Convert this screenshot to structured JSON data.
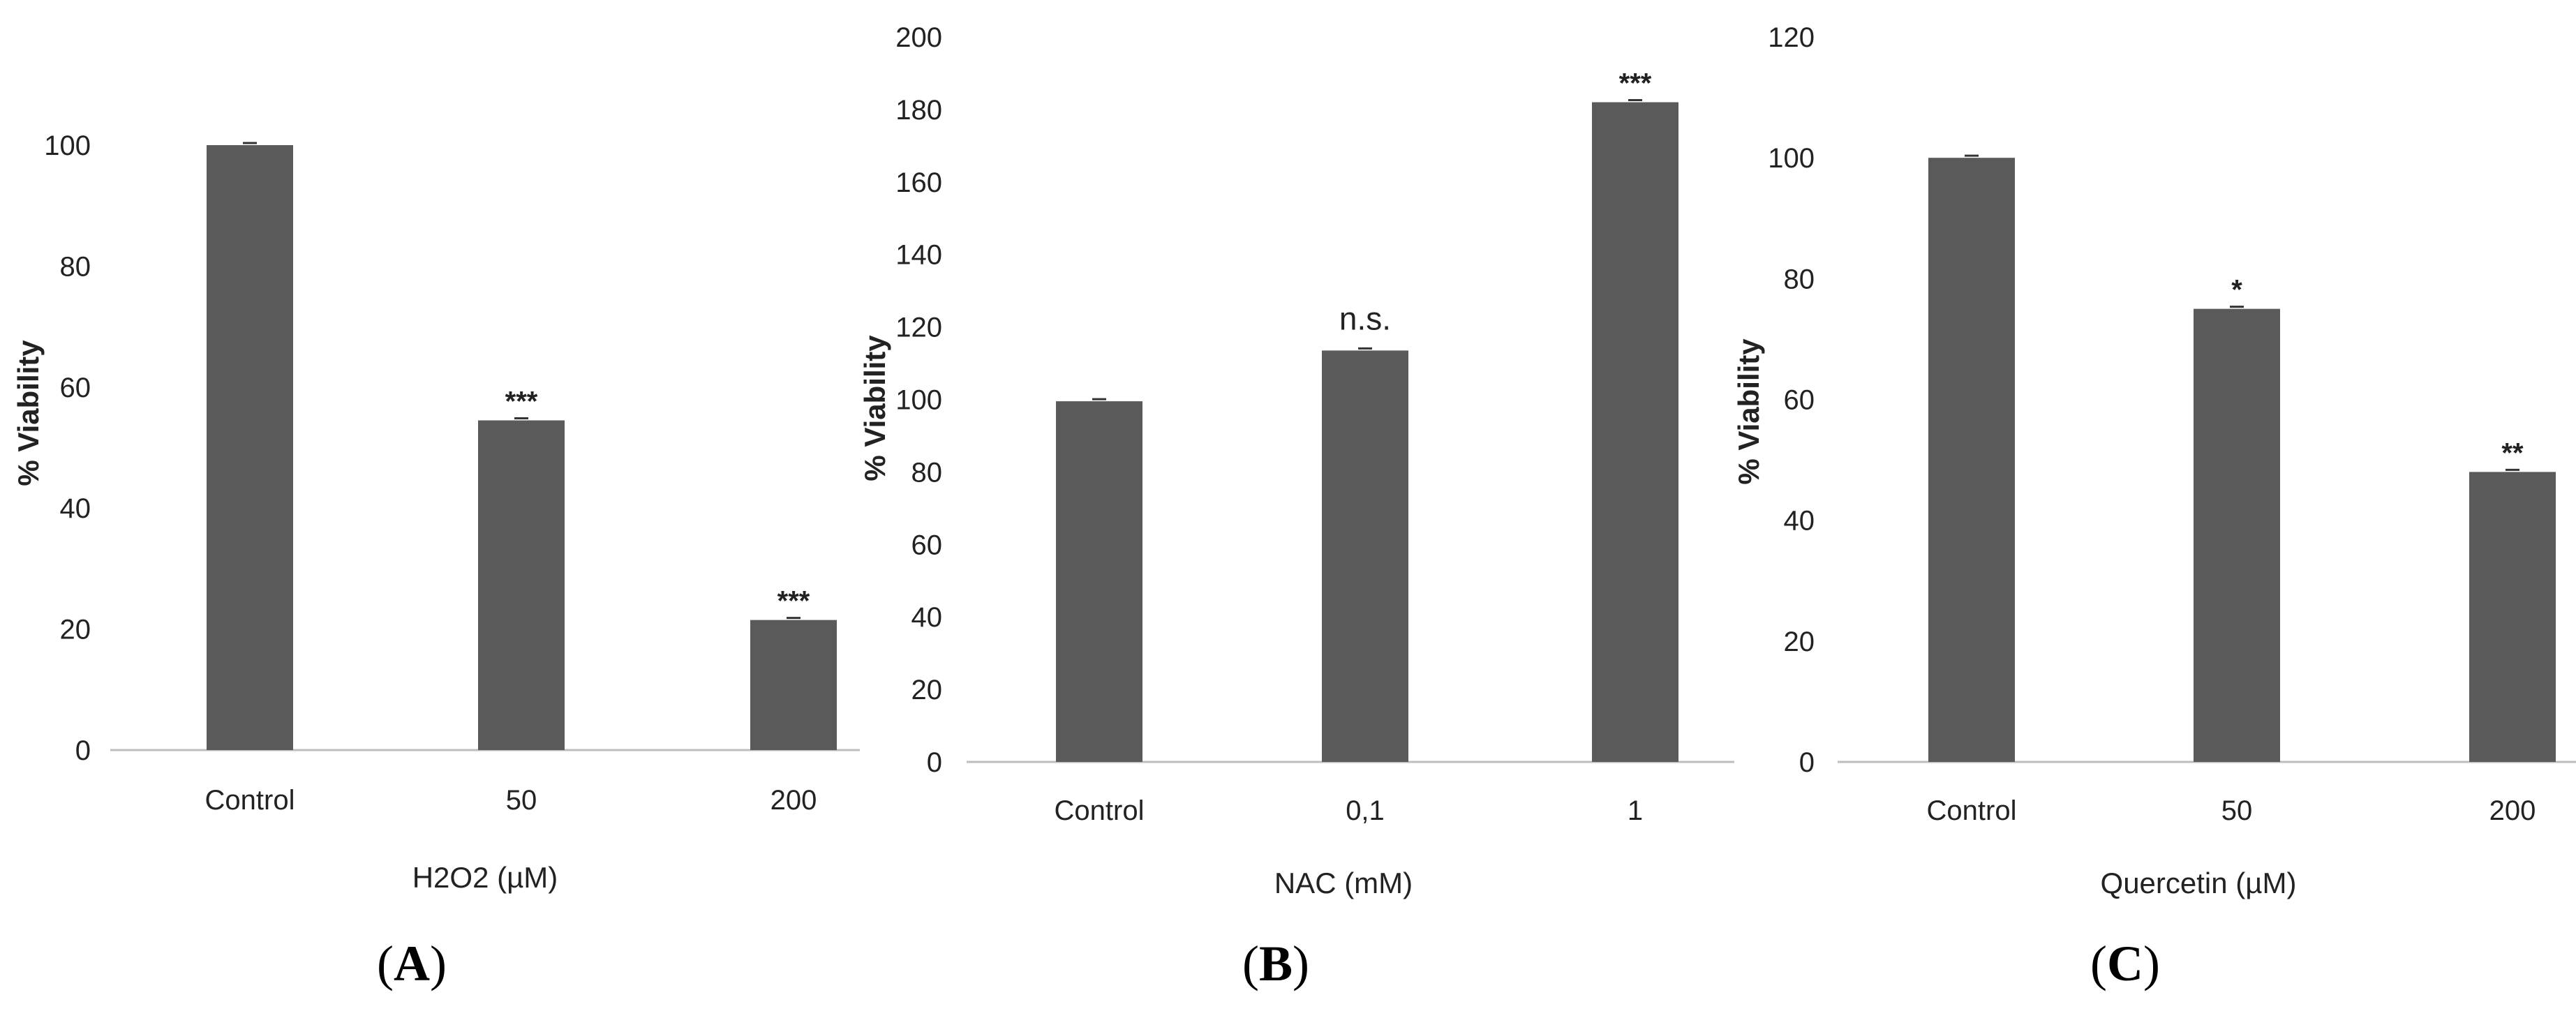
{
  "colors": {
    "bar": "#5a5a5a",
    "axis": "#bdbdbd",
    "text": "#222222"
  },
  "chart_data": [
    {
      "type": "bar",
      "panel": "A",
      "title": "",
      "xlabel": "H2O2 (µM)",
      "ylabel": "% Viability",
      "categories": [
        "Control",
        "50",
        "200"
      ],
      "values": [
        100,
        54.5,
        21.5
      ],
      "annotations": [
        "",
        "***",
        "***"
      ],
      "ylim": [
        0,
        100
      ],
      "yticks": [
        0,
        20,
        40,
        60,
        80,
        100
      ],
      "grid": false
    },
    {
      "type": "bar",
      "panel": "B",
      "title": "",
      "xlabel": "NAC (mM)",
      "ylabel": "% Viability",
      "categories": [
        "Control",
        "0,1",
        "1"
      ],
      "values": [
        99.5,
        113.5,
        182
      ],
      "annotations": [
        "",
        "n.s.",
        "***"
      ],
      "ylim": [
        0,
        200
      ],
      "yticks": [
        0,
        20,
        40,
        60,
        80,
        100,
        120,
        140,
        160,
        180,
        200
      ],
      "grid": false
    },
    {
      "type": "bar",
      "panel": "C",
      "title": "",
      "xlabel": "Quercetin (µM)",
      "ylabel": "% Viability",
      "categories": [
        "Control",
        "50",
        "200"
      ],
      "values": [
        100,
        75,
        48
      ],
      "annotations": [
        "",
        "*",
        "**"
      ],
      "ylim": [
        0,
        120
      ],
      "yticks": [
        0,
        20,
        40,
        60,
        80,
        100,
        120
      ],
      "grid": false
    }
  ]
}
